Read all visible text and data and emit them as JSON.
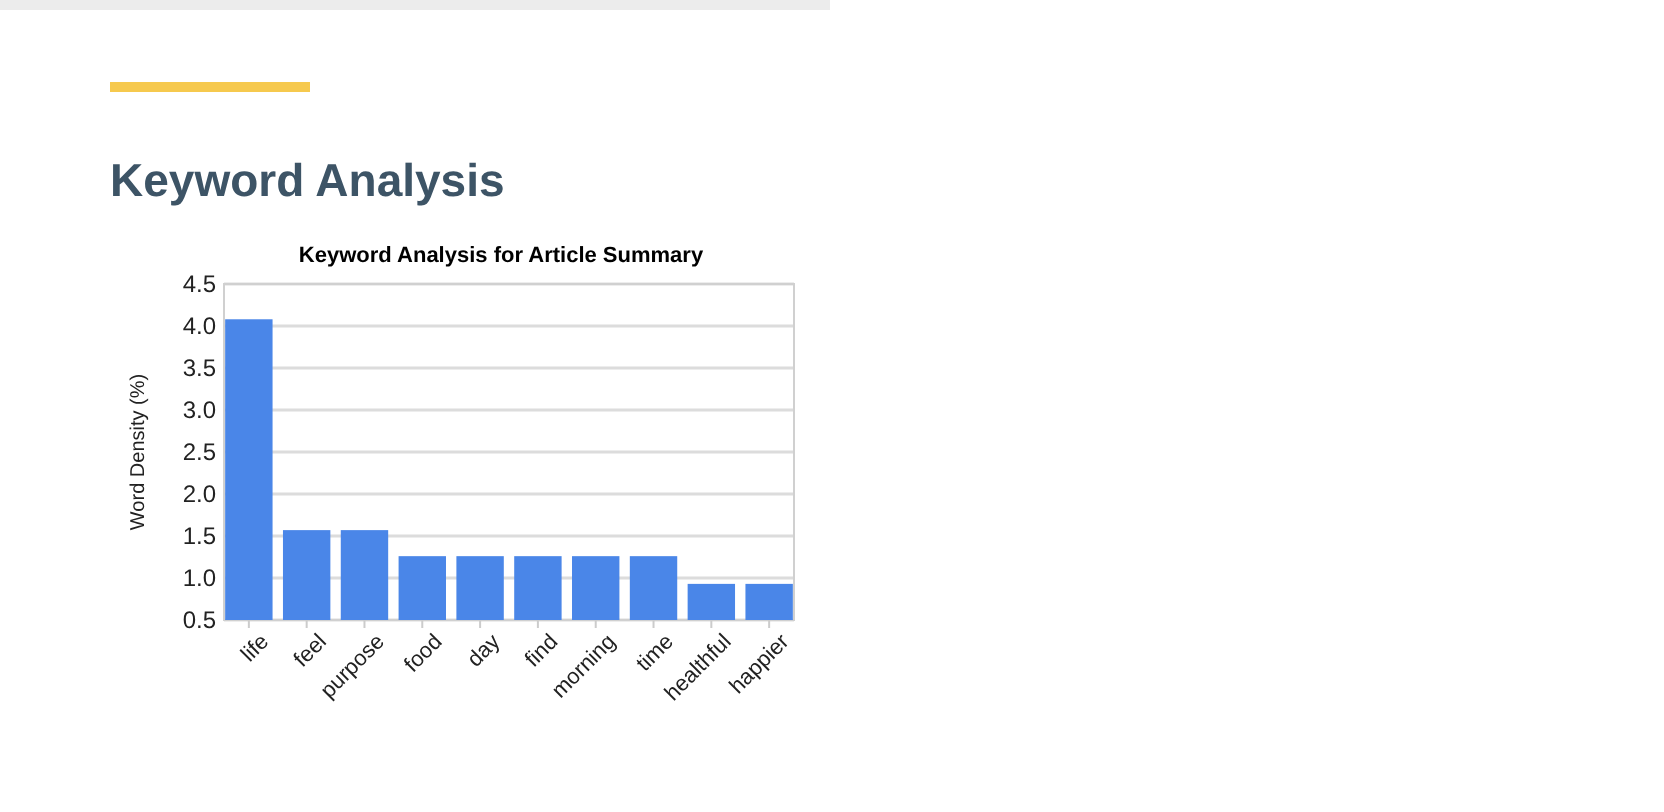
{
  "chart_data": {
    "type": "bar",
    "title": "Keyword Analysis",
    "subtitle": "Keyword Analysis for Article Summary",
    "ylabel": "Word Density (%)",
    "categories": [
      "life",
      "feel",
      "purpose",
      "food",
      "day",
      "find",
      "morning",
      "time",
      "healthful",
      "happier"
    ],
    "values": [
      4.08,
      1.57,
      1.57,
      1.26,
      1.26,
      1.26,
      1.26,
      1.26,
      0.93,
      0.93
    ],
    "color": "#4a86e8",
    "ylim": [
      0.5,
      4.5
    ],
    "yticks": [
      {
        "value": 0.5,
        "label": "0.5"
      },
      {
        "value": 1,
        "label": "1.0"
      },
      {
        "value": 1.5,
        "label": "1.5"
      },
      {
        "value": 2,
        "label": "2.0"
      },
      {
        "value": 2.5,
        "label": "2.5"
      },
      {
        "value": 3,
        "label": "3.0"
      },
      {
        "value": 3.5,
        "label": "3.5"
      },
      {
        "value": 4,
        "label": "4.0"
      },
      {
        "value": 4.5,
        "label": "4.5"
      }
    ],
    "grid": "y"
  }
}
